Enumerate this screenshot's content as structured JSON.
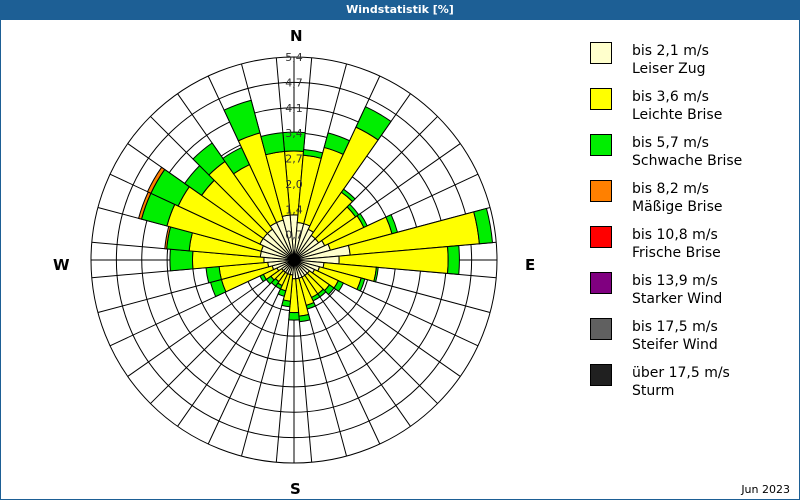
{
  "title": "Windstatistik [%]",
  "date_label": "Jun 2023",
  "compass": {
    "n": "N",
    "e": "E",
    "s": "S",
    "w": "W"
  },
  "legend": [
    {
      "speed": "bis 2,1 m/s",
      "name": "Leiser Zug",
      "color": "#ffffcc"
    },
    {
      "speed": "bis 3,6 m/s",
      "name": "Leichte Brise",
      "color": "#ffff00"
    },
    {
      "speed": "bis 5,7 m/s",
      "name": "Schwache Brise",
      "color": "#00ee00"
    },
    {
      "speed": "bis 8,2 m/s",
      "name": "Mäßige Brise",
      "color": "#ff8000"
    },
    {
      "speed": "bis 10,8 m/s",
      "name": "Frische Brise",
      "color": "#ff0000"
    },
    {
      "speed": "bis 13,9 m/s",
      "name": "Starker Wind",
      "color": "#800080"
    },
    {
      "speed": "bis 17,5 m/s",
      "name": "Steifer Wind",
      "color": "#606060"
    },
    {
      "speed": "über 17,5 m/s",
      "name": "Sturm",
      "color": "#202020"
    }
  ],
  "chart_data": {
    "type": "polar-stacked-bar",
    "title": "Windstatistik [%]",
    "subtitle": "Jun 2023",
    "unit": "%",
    "rmax": 5.4,
    "ring_ticks": [
      "0,7",
      "1,4",
      "2,0",
      "2,7",
      "3,4",
      "4,1",
      "4,7",
      "5,4"
    ],
    "ring_values": [
      0.675,
      1.35,
      2.025,
      2.7,
      3.375,
      4.05,
      4.725,
      5.4
    ],
    "direction_labels": [
      "N",
      "E",
      "S",
      "W"
    ],
    "sector_width_deg": 10,
    "directions_deg": [
      0,
      10,
      20,
      30,
      40,
      50,
      60,
      70,
      80,
      90,
      100,
      110,
      120,
      130,
      140,
      150,
      160,
      170,
      180,
      190,
      200,
      210,
      220,
      230,
      240,
      250,
      260,
      270,
      280,
      290,
      300,
      310,
      320,
      330,
      340,
      350
    ],
    "series": [
      {
        "name": "bis 2,1 m/s Leiser Zug",
        "values": [
          1.2,
          1.0,
          1.0,
          0.9,
          0.8,
          0.8,
          0.9,
          1.0,
          1.5,
          1.2,
          0.8,
          0.7,
          0.6,
          0.5,
          0.5,
          0.5,
          0.5,
          0.5,
          0.5,
          0.4,
          0.4,
          0.4,
          0.4,
          0.4,
          0.5,
          0.6,
          0.7,
          0.8,
          0.9,
          0.9,
          1.0,
          1.0,
          1.0,
          1.1,
          1.1,
          1.2
        ]
      },
      {
        "name": "bis 3,6 m/s Leichte Brise",
        "values": [
          1.7,
          1.8,
          2.1,
          3.0,
          1.4,
          1.2,
          1.15,
          1.7,
          3.45,
          2.9,
          1.4,
          1.15,
          0.7,
          0.65,
          0.6,
          0.6,
          0.75,
          1.0,
          0.9,
          0.7,
          0.45,
          0.35,
          0.3,
          0.35,
          0.4,
          1.4,
          1.3,
          1.9,
          1.9,
          2.6,
          2.4,
          2.0,
          2.2,
          1.7,
          2.4,
          1.7
        ]
      },
      {
        "name": "bis 5,7 m/s Schwache Brise",
        "values": [
          0.5,
          0.15,
          0.4,
          0.6,
          0.1,
          0.1,
          0.1,
          0.15,
          0.35,
          0.3,
          0.05,
          0.1,
          0.15,
          0.15,
          0.1,
          0.1,
          0.1,
          0.15,
          0.2,
          0.15,
          0.15,
          0.1,
          0.15,
          0.15,
          0.1,
          0.3,
          0.35,
          0.6,
          0.6,
          0.7,
          0.8,
          0.55,
          0.6,
          0.5,
          0.9,
          0.5
        ]
      },
      {
        "name": "bis 8,2 m/s Mäßige Brise",
        "values": [
          0,
          0,
          0,
          0,
          0,
          0,
          0,
          0,
          0,
          0,
          0,
          0,
          0,
          0,
          0,
          0,
          0,
          0,
          0,
          0,
          0,
          0,
          0,
          0,
          0,
          0,
          0,
          0,
          0.05,
          0.08,
          0.1,
          0,
          0,
          0,
          0,
          0
        ]
      },
      {
        "name": "bis 10,8 m/s Frische Brise",
        "values": [
          0,
          0,
          0,
          0,
          0,
          0,
          0,
          0,
          0,
          0,
          0,
          0,
          0,
          0,
          0,
          0,
          0,
          0,
          0,
          0,
          0,
          0,
          0,
          0,
          0,
          0,
          0,
          0,
          0,
          0,
          0,
          0,
          0,
          0,
          0,
          0
        ]
      },
      {
        "name": "bis 13,9 m/s Starker Wind",
        "values": [
          0,
          0,
          0,
          0,
          0,
          0,
          0,
          0,
          0,
          0,
          0,
          0,
          0,
          0,
          0,
          0,
          0,
          0,
          0,
          0,
          0,
          0,
          0,
          0,
          0,
          0,
          0,
          0,
          0,
          0,
          0,
          0,
          0,
          0,
          0,
          0
        ]
      },
      {
        "name": "bis 17,5 m/s Steifer Wind",
        "values": [
          0,
          0,
          0,
          0,
          0,
          0,
          0,
          0,
          0,
          0,
          0,
          0,
          0,
          0,
          0,
          0,
          0,
          0,
          0,
          0,
          0,
          0,
          0,
          0,
          0,
          0,
          0,
          0,
          0,
          0,
          0,
          0,
          0,
          0,
          0,
          0
        ]
      },
      {
        "name": "über 17,5 m/s Sturm",
        "values": [
          0,
          0,
          0,
          0,
          0,
          0,
          0,
          0,
          0,
          0,
          0,
          0,
          0,
          0,
          0,
          0,
          0,
          0,
          0,
          0,
          0,
          0,
          0,
          0,
          0,
          0,
          0,
          0,
          0,
          0,
          0,
          0,
          0,
          0,
          0,
          0
        ]
      }
    ],
    "legend_position": "right",
    "grid": true
  }
}
